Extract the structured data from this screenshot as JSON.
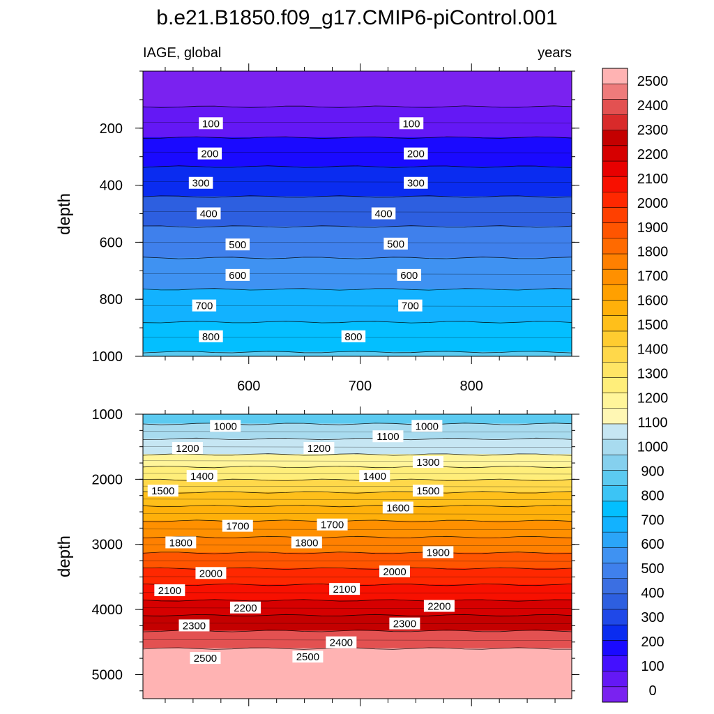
{
  "chart_data": {
    "type": "heatmap",
    "title": "b.e21.B1850.f09_g17.CMIP6-piControl.001",
    "left_label": "IAGE, global",
    "right_label": "years",
    "ylabel": "depth",
    "x": {
      "tick_labels": [
        "600",
        "700",
        "800"
      ],
      "tick_values": [
        600,
        700,
        800
      ],
      "range": [
        505,
        890
      ]
    },
    "panels": [
      {
        "name": "upper",
        "ylim": [
          0,
          1000
        ],
        "y_ticks": [
          200,
          400,
          600,
          800,
          1000
        ],
        "y_tick_labels": [
          "200",
          "400",
          "600",
          "800",
          "1000"
        ],
        "contours": [
          {
            "level": 100,
            "depth": 125
          },
          {
            "level": 200,
            "depth": 233
          },
          {
            "level": 300,
            "depth": 335
          },
          {
            "level": 400,
            "depth": 440
          },
          {
            "level": 500,
            "depth": 545
          },
          {
            "level": 600,
            "depth": 655
          },
          {
            "level": 700,
            "depth": 765
          },
          {
            "level": 800,
            "depth": 880
          },
          {
            "level": 900,
            "depth": 985
          }
        ],
        "contour_labels": [
          {
            "text": "100",
            "x": 566,
            "depth": 184
          },
          {
            "text": "100",
            "x": 746,
            "depth": 184
          },
          {
            "text": "200",
            "x": 565,
            "depth": 290
          },
          {
            "text": "200",
            "x": 750,
            "depth": 290
          },
          {
            "text": "300",
            "x": 557,
            "depth": 393
          },
          {
            "text": "300",
            "x": 750,
            "depth": 393
          },
          {
            "text": "400",
            "x": 564,
            "depth": 500
          },
          {
            "text": "400",
            "x": 721,
            "depth": 500
          },
          {
            "text": "500",
            "x": 590,
            "depth": 609
          },
          {
            "text": "500",
            "x": 732,
            "depth": 606
          },
          {
            "text": "600",
            "x": 590,
            "depth": 716
          },
          {
            "text": "600",
            "x": 744,
            "depth": 716
          },
          {
            "text": "700",
            "x": 560,
            "depth": 823
          },
          {
            "text": "700",
            "x": 745,
            "depth": 823
          },
          {
            "text": "800",
            "x": 566,
            "depth": 931
          },
          {
            "text": "800",
            "x": 694,
            "depth": 931
          }
        ]
      },
      {
        "name": "lower",
        "ylim": [
          1000,
          5370
        ],
        "y_ticks": [
          1000,
          2000,
          3000,
          4000,
          5000
        ],
        "y_tick_labels": [
          "1000",
          "2000",
          "3000",
          "4000",
          "5000"
        ],
        "contours": [
          {
            "level": 1000,
            "depth": 1150
          },
          {
            "level": 1100,
            "depth": 1380
          },
          {
            "level": 1200,
            "depth": 1620
          },
          {
            "level": 1300,
            "depth": 1810
          },
          {
            "level": 1400,
            "depth": 2010
          },
          {
            "level": 1500,
            "depth": 2200
          },
          {
            "level": 1600,
            "depth": 2410
          },
          {
            "level": 1700,
            "depth": 2640
          },
          {
            "level": 1800,
            "depth": 2890
          },
          {
            "level": 1900,
            "depth": 3130
          },
          {
            "level": 2000,
            "depth": 3370
          },
          {
            "level": 2100,
            "depth": 3620
          },
          {
            "level": 2200,
            "depth": 3860
          },
          {
            "level": 2300,
            "depth": 4090
          },
          {
            "level": 2400,
            "depth": 4330
          },
          {
            "level": 2500,
            "depth": 4600
          }
        ],
        "contour_labels": [
          {
            "text": "1000",
            "x": 579,
            "depth": 1185
          },
          {
            "text": "1000",
            "x": 760,
            "depth": 1185
          },
          {
            "text": "1100",
            "x": 725,
            "depth": 1345
          },
          {
            "text": "1200",
            "x": 545,
            "depth": 1525
          },
          {
            "text": "1200",
            "x": 663,
            "depth": 1525
          },
          {
            "text": "1300",
            "x": 761,
            "depth": 1740
          },
          {
            "text": "1400",
            "x": 558,
            "depth": 1955
          },
          {
            "text": "1400",
            "x": 713,
            "depth": 1955
          },
          {
            "text": "1500",
            "x": 523,
            "depth": 2180
          },
          {
            "text": "1500",
            "x": 761,
            "depth": 2180
          },
          {
            "text": "1600",
            "x": 734,
            "depth": 2440
          },
          {
            "text": "1700",
            "x": 590,
            "depth": 2720
          },
          {
            "text": "1700",
            "x": 675,
            "depth": 2700
          },
          {
            "text": "1800",
            "x": 539,
            "depth": 2975
          },
          {
            "text": "1800",
            "x": 652,
            "depth": 2975
          },
          {
            "text": "1900",
            "x": 770,
            "depth": 3125
          },
          {
            "text": "2000",
            "x": 566,
            "depth": 3445
          },
          {
            "text": "2000",
            "x": 731,
            "depth": 3420
          },
          {
            "text": "2100",
            "x": 529,
            "depth": 3710
          },
          {
            "text": "2100",
            "x": 686,
            "depth": 3690
          },
          {
            "text": "2200",
            "x": 597,
            "depth": 3975
          },
          {
            "text": "2200",
            "x": 771,
            "depth": 3950
          },
          {
            "text": "2300",
            "x": 551,
            "depth": 4250
          },
          {
            "text": "2300",
            "x": 740,
            "depth": 4220
          },
          {
            "text": "2400",
            "x": 683,
            "depth": 4510
          },
          {
            "text": "2500",
            "x": 561,
            "depth": 4750
          },
          {
            "text": "2500",
            "x": 653,
            "depth": 4730
          }
        ]
      }
    ],
    "colorbar": {
      "labels": [
        "0",
        "100",
        "200",
        "300",
        "400",
        "500",
        "600",
        "700",
        "800",
        "900",
        "1000",
        "1100",
        "1200",
        "1300",
        "1400",
        "1500",
        "1600",
        "1700",
        "1800",
        "1900",
        "2000",
        "2100",
        "2200",
        "2300",
        "2400",
        "2500"
      ],
      "colors": [
        "#7a22f0",
        "#6418f5",
        "#4410ff",
        "#1a0aff",
        "#0a2cf0",
        "#1f48e8",
        "#2d5fe0",
        "#3b6fe2",
        "#3f80ec",
        "#3f92f2",
        "#2ba5f8",
        "#12b2ff",
        "#03bfff",
        "#3cc4f5",
        "#5ccaf0",
        "#85d0ee",
        "#a8dbef",
        "#c6e6f3",
        "#fff7b4",
        "#fff59a",
        "#ffee7a",
        "#ffe565",
        "#ffd84a",
        "#ffcc30",
        "#ffbf1a",
        "#ffb00a",
        "#ffa000",
        "#ff9000",
        "#ff8000",
        "#ff6a00",
        "#ff5500",
        "#ff4000",
        "#ff2800",
        "#f81000",
        "#e80000",
        "#d60000",
        "#c40000",
        "#d92a2a",
        "#e35151",
        "#ee7b7b",
        "#ffb3b3"
      ]
    }
  }
}
